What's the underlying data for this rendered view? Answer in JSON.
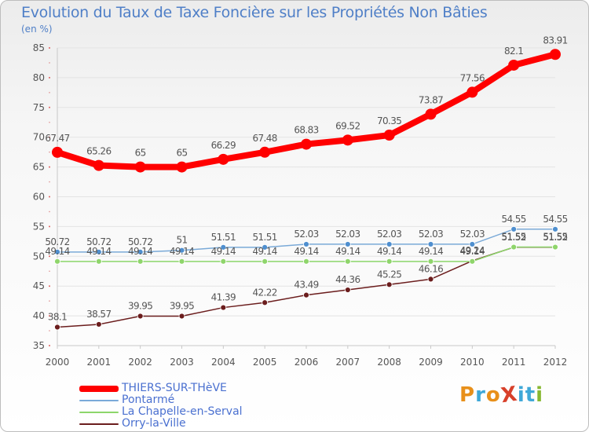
{
  "title": "Evolution du Taux de Taxe Foncière sur les Propriétés Non Bâties",
  "subtitle": "(en %)",
  "logo": {
    "text": "ProXiti",
    "colors": [
      "#e8901a",
      "#3fa8d8",
      "#e8901a",
      "#d8402a",
      "#3fa8d8",
      "#3fa8d8",
      "#88b832"
    ]
  },
  "chart_data": {
    "type": "line",
    "title": "Evolution du Taux de Taxe Foncière sur les Propriétés Non Bâties",
    "ylabel": "(en %)",
    "xlabel": "",
    "x": [
      "2000",
      "2001",
      "2002",
      "2003",
      "2004",
      "2005",
      "2006",
      "2007",
      "2008",
      "2009",
      "2010",
      "2011",
      "2012"
    ],
    "ylim": [
      35,
      85
    ],
    "yticks": [
      35,
      40,
      45,
      50,
      55,
      60,
      65,
      70,
      75,
      80,
      85
    ],
    "grid": "horizontal",
    "series": [
      {
        "name": "Orry-la-Ville",
        "color": "#6b1d1d",
        "markerFill": "#6b1d1d",
        "values": [
          38.1,
          38.57,
          39.95,
          39.95,
          41.39,
          42.22,
          43.49,
          44.36,
          45.25,
          46.16,
          49.24,
          51.52,
          51.52
        ],
        "labels": [
          "38.1",
          "38.57",
          "39.95",
          "39.95",
          "41.39",
          "42.22",
          "43.49",
          "44.36",
          "45.25",
          "46.16",
          "49.24",
          "51.52",
          "51.52"
        ]
      },
      {
        "name": "La Chapelle-en-Serval",
        "color": "#8cd66a",
        "markerFill": "#8fd56b",
        "values": [
          49.14,
          49.14,
          49.14,
          49.14,
          49.14,
          49.14,
          49.14,
          49.14,
          49.14,
          49.14,
          49.14,
          51.55,
          51.55
        ],
        "labels": [
          "49.14",
          "49.14",
          "49.14",
          "49.14",
          "49.14",
          "49.14",
          "49.14",
          "49.14",
          "49.14",
          "49.14",
          "49.14",
          "51.55",
          "51.55"
        ]
      },
      {
        "name": "Pontarmé",
        "color": "#7aaad8",
        "markerFill": "#4f8fcf",
        "values": [
          50.72,
          50.72,
          50.72,
          51,
          51.51,
          51.51,
          52.03,
          52.03,
          52.03,
          52.03,
          52.03,
          54.55,
          54.55
        ],
        "labels": [
          "50.72",
          "50.72",
          "50.72",
          "51",
          "51.51",
          "51.51",
          "52.03",
          "52.03",
          "52.03",
          "52.03",
          "52.03",
          "54.55",
          "54.55"
        ]
      },
      {
        "name": "THIERS-SUR-THèVE",
        "color": "#ff0000",
        "markerFill": "#ff0000",
        "values": [
          67.47,
          65.26,
          65,
          65,
          66.29,
          67.48,
          68.83,
          69.52,
          70.35,
          73.87,
          77.56,
          82.1,
          83.91
        ],
        "labels": [
          "67.47",
          "65.26",
          "65",
          "65",
          "66.29",
          "67.48",
          "68.83",
          "69.52",
          "70.35",
          "73.87",
          "77.56",
          "82.1",
          "83.91"
        ]
      }
    ],
    "legend": [
      {
        "name": "THIERS-SUR-THèVE",
        "color": "#ff0000"
      },
      {
        "name": "Pontarmé",
        "color": "#7aaad8"
      },
      {
        "name": "La Chapelle-en-Serval",
        "color": "#8cd66a"
      },
      {
        "name": "Orry-la-Ville",
        "color": "#6b1d1d"
      }
    ],
    "legend_position": "bottom-left"
  }
}
